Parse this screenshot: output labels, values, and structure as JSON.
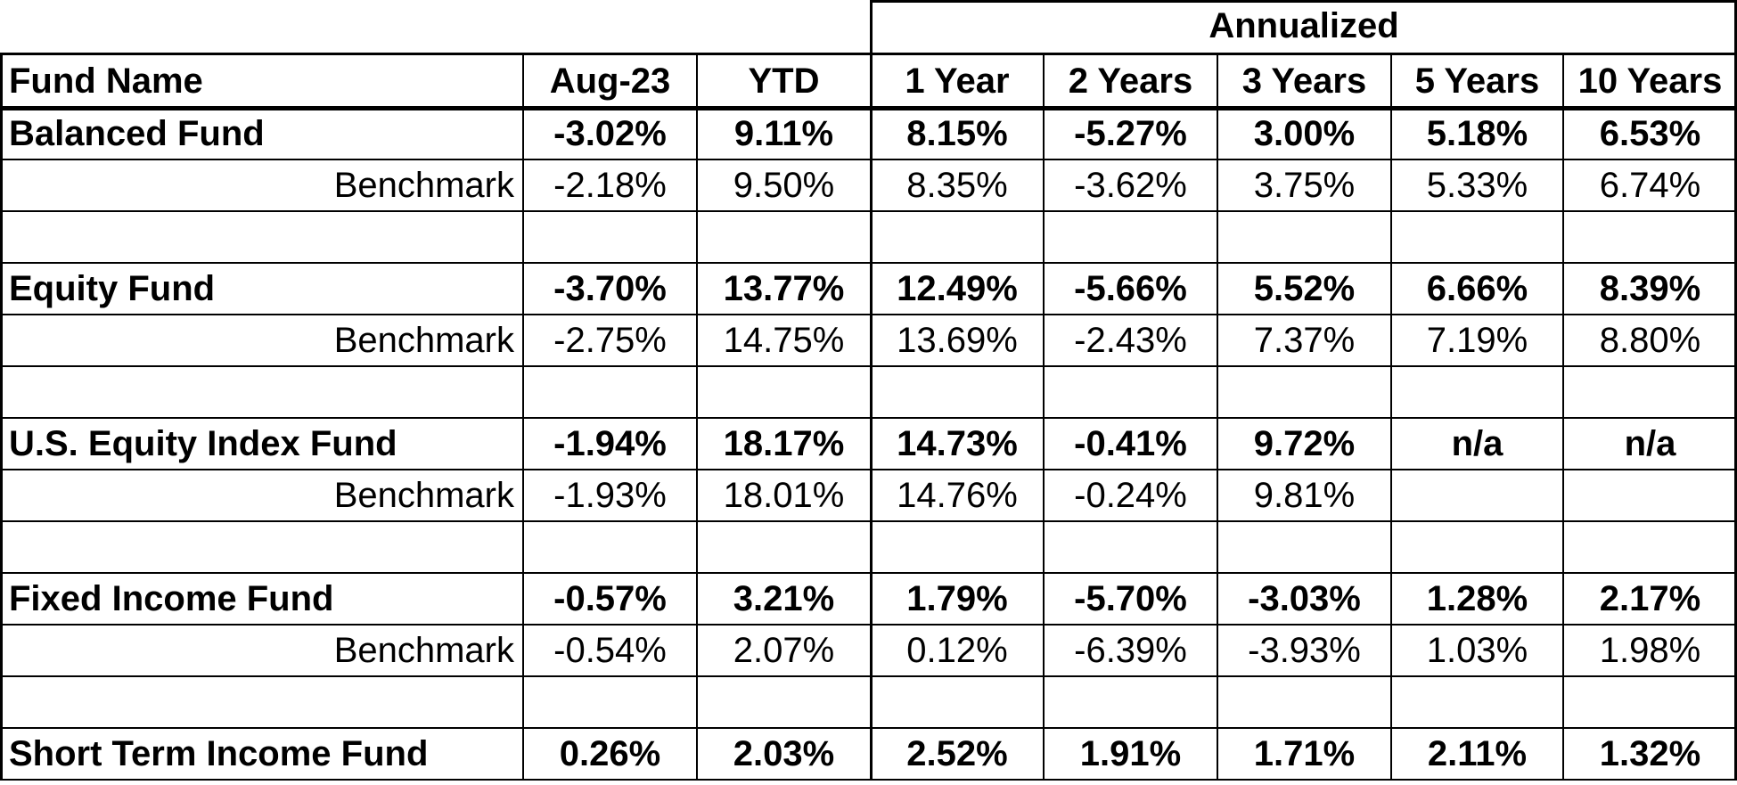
{
  "header": {
    "group_label": "Annualized",
    "columns": [
      "Fund Name",
      "Aug-23",
      "YTD",
      "1 Year",
      "2 Years",
      "3 Years",
      "5 Years",
      "10 Years"
    ]
  },
  "rows": [
    {
      "type": "fund",
      "name": "Balanced Fund",
      "values": [
        "-3.02%",
        "9.11%",
        "8.15%",
        "-5.27%",
        "3.00%",
        "5.18%",
        "6.53%"
      ]
    },
    {
      "type": "benchmark",
      "name": "Benchmark",
      "values": [
        "-2.18%",
        "9.50%",
        "8.35%",
        "-3.62%",
        "3.75%",
        "5.33%",
        "6.74%"
      ]
    },
    {
      "type": "spacer",
      "name": "",
      "values": [
        "",
        "",
        "",
        "",
        "",
        "",
        ""
      ]
    },
    {
      "type": "fund",
      "name": "Equity Fund",
      "values": [
        "-3.70%",
        "13.77%",
        "12.49%",
        "-5.66%",
        "5.52%",
        "6.66%",
        "8.39%"
      ]
    },
    {
      "type": "benchmark",
      "name": "Benchmark",
      "values": [
        "-2.75%",
        "14.75%",
        "13.69%",
        "-2.43%",
        "7.37%",
        "7.19%",
        "8.80%"
      ]
    },
    {
      "type": "spacer",
      "name": "",
      "values": [
        "",
        "",
        "",
        "",
        "",
        "",
        ""
      ]
    },
    {
      "type": "fund",
      "name": "U.S. Equity Index Fund",
      "values": [
        "-1.94%",
        "18.17%",
        "14.73%",
        "-0.41%",
        "9.72%",
        "n/a",
        "n/a"
      ]
    },
    {
      "type": "benchmark",
      "name": "Benchmark",
      "values": [
        "-1.93%",
        "18.01%",
        "14.76%",
        "-0.24%",
        "9.81%",
        "",
        ""
      ]
    },
    {
      "type": "spacer",
      "name": "",
      "values": [
        "",
        "",
        "",
        "",
        "",
        "",
        ""
      ]
    },
    {
      "type": "fund",
      "name": "Fixed Income Fund",
      "values": [
        "-0.57%",
        "3.21%",
        "1.79%",
        "-5.70%",
        "-3.03%",
        "1.28%",
        "2.17%"
      ]
    },
    {
      "type": "benchmark",
      "name": "Benchmark",
      "values": [
        "-0.54%",
        "2.07%",
        "0.12%",
        "-6.39%",
        "-3.93%",
        "1.03%",
        "1.98%"
      ]
    },
    {
      "type": "spacer",
      "name": "",
      "values": [
        "",
        "",
        "",
        "",
        "",
        "",
        ""
      ]
    },
    {
      "type": "fund",
      "name": "Short Term Income Fund",
      "values": [
        "0.26%",
        "2.03%",
        "2.52%",
        "1.91%",
        "1.71%",
        "2.11%",
        "1.32%"
      ]
    }
  ]
}
